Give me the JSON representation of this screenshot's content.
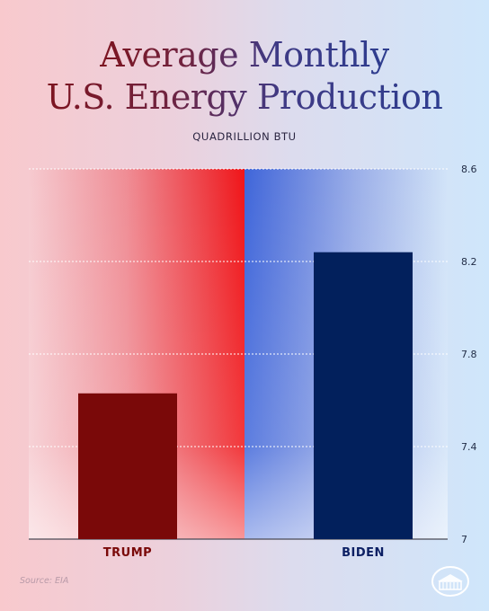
{
  "title_line1": "Average Monthly",
  "title_line2": "U.S. Energy Production",
  "subtitle": "QUADRILLION BTU",
  "source": "Source: EIA",
  "colors": {
    "trump_bar": "#7a0909",
    "biden_bar": "#02205c",
    "trump_label": "#7a0909",
    "biden_label": "#0c1f63",
    "red_band": "#f01519",
    "blue_band": "#3f66da"
  },
  "chart_data": {
    "type": "bar",
    "title": "Average Monthly U.S. Energy Production",
    "ylabel": "QUADRILLION BTU",
    "categories": [
      "TRUMP",
      "BIDEN"
    ],
    "values": [
      7.63,
      8.24
    ],
    "ylim": [
      7,
      8.6
    ],
    "yticks": [
      "8.6",
      "8.2",
      "7.8",
      "7.4",
      "7"
    ],
    "ytick_values": [
      8.6,
      8.2,
      7.8,
      7.4,
      7
    ],
    "grid": true,
    "ytick_position": "right"
  },
  "seal_icon": "white-house-seal-icon"
}
